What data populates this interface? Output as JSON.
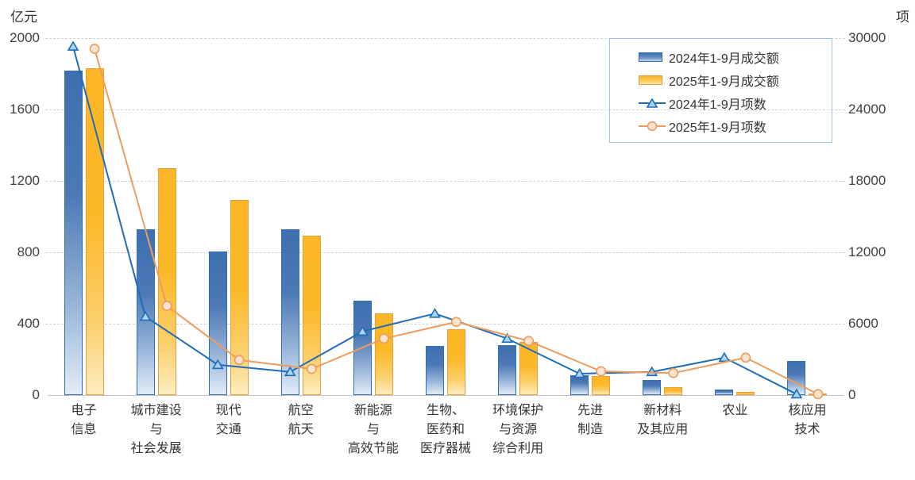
{
  "page": {
    "background": "#ffffff"
  },
  "chart_data": {
    "type": "combo",
    "title": "",
    "left_axis": {
      "unit": "亿元",
      "min": 0,
      "max": 2000,
      "ticks": [
        0,
        400,
        800,
        1200,
        1600,
        2000
      ]
    },
    "right_axis": {
      "unit": "项",
      "min": 0,
      "max": 30000,
      "ticks": [
        0,
        6000,
        12000,
        18000,
        24000,
        30000
      ]
    },
    "categories": [
      "电子信息",
      "城市建设与社会发展",
      "现代交通",
      "航空航天",
      "新能源与高效节能",
      "生物、医药和医疗器械",
      "环境保护与资源综合利用",
      "先进制造",
      "新材料及其应用",
      "农业",
      "核应用技术"
    ],
    "categories_multiline": [
      [
        "电子",
        "信息"
      ],
      [
        "城市建设",
        "与",
        "社会发展"
      ],
      [
        "现代",
        "交通"
      ],
      [
        "航空",
        "航天"
      ],
      [
        "新能源",
        "与",
        "高效节能"
      ],
      [
        "生物、",
        "医药和",
        "医疗器械"
      ],
      [
        "环境保护",
        "与资源",
        "综合利用"
      ],
      [
        "先进",
        "制造"
      ],
      [
        "新材料",
        "及其应用"
      ],
      [
        "农业"
      ],
      [
        "核应用",
        "技术"
      ]
    ],
    "series": [
      {
        "name": "2024年1-9月成交额",
        "type": "bar",
        "axis": "left",
        "color_top": "#3e6fb0",
        "color_bottom": "#e3ecf7",
        "border": "#2e6fb7",
        "values": [
          1820,
          930,
          805,
          930,
          530,
          275,
          280,
          110,
          85,
          30,
          190
        ]
      },
      {
        "name": "2025年1-9月成交额",
        "type": "bar",
        "axis": "left",
        "color_top": "#fcb626",
        "color_bottom": "#fdedc0",
        "border": "#ea9d3e",
        "values": [
          1830,
          1270,
          1095,
          895,
          460,
          370,
          300,
          105,
          45,
          20,
          2
        ]
      },
      {
        "name": "2024年1-9月项数",
        "type": "line",
        "axis": "right",
        "color": "#1e6db6",
        "marker": "triangle",
        "marker_fill": "#a9d3f0",
        "values": [
          29300,
          6600,
          2550,
          1950,
          5350,
          6850,
          4750,
          1800,
          1950,
          3150,
          80
        ]
      },
      {
        "name": "2025年1-9月项数",
        "type": "line",
        "axis": "right",
        "color": "#ec9c5d",
        "marker": "circle",
        "marker_fill": "#fbe3d0",
        "values": [
          29100,
          7500,
          2950,
          2200,
          4750,
          6150,
          4550,
          2000,
          1850,
          3150,
          80
        ]
      }
    ],
    "grid": {
      "horizontal": "dashed",
      "color": "#d2d2d2"
    },
    "legend": {
      "position": "top-right",
      "border_color": "#9dc3e6"
    }
  }
}
